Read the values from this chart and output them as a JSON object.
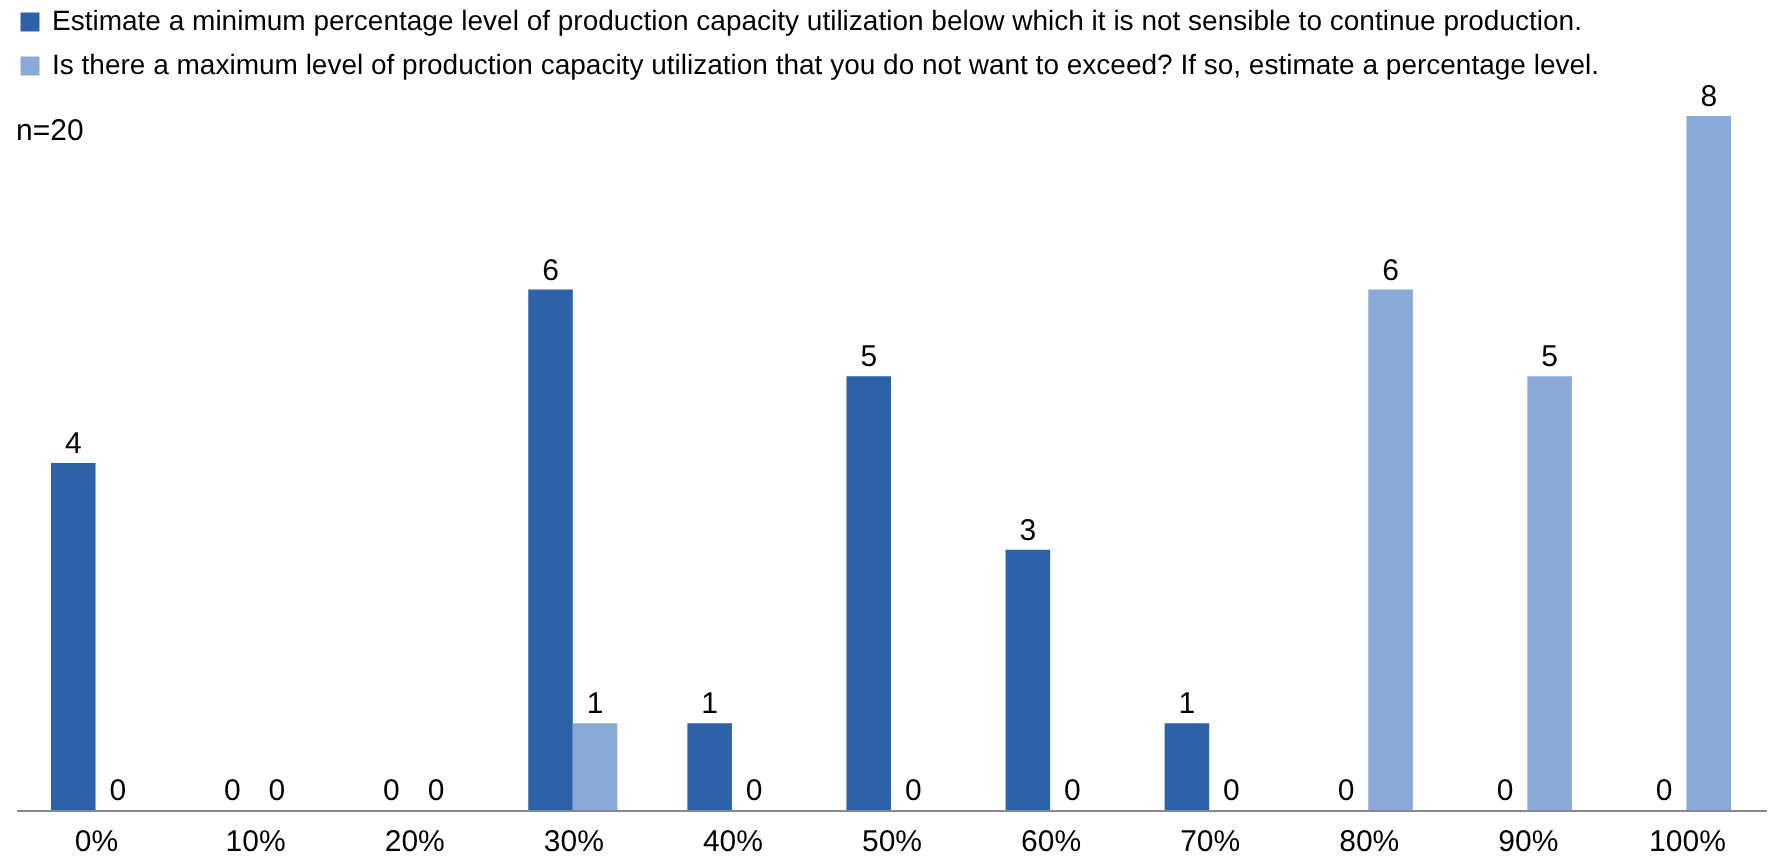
{
  "chart_data": {
    "type": "bar",
    "categories": [
      "0%",
      "10%",
      "20%",
      "30%",
      "40%",
      "50%",
      "60%",
      "70%",
      "80%",
      "90%",
      "100%"
    ],
    "series": [
      {
        "name": "Estimate a minimum percentage level of production capacity utilization below which it is not sensible to continue production.",
        "color": "#2e62a8",
        "values": [
          4,
          0,
          0,
          6,
          1,
          5,
          3,
          1,
          0,
          0,
          0
        ]
      },
      {
        "name": "Is there a maximum level of production capacity utilization that you do not want to exceed? If so, estimate a percentage level.",
        "color": "#8aa9d6",
        "values": [
          0,
          0,
          0,
          1,
          0,
          0,
          0,
          0,
          6,
          5,
          8
        ]
      }
    ],
    "data_labels": true,
    "legend": "top",
    "grid": false,
    "annotations": [
      "n=20"
    ]
  }
}
